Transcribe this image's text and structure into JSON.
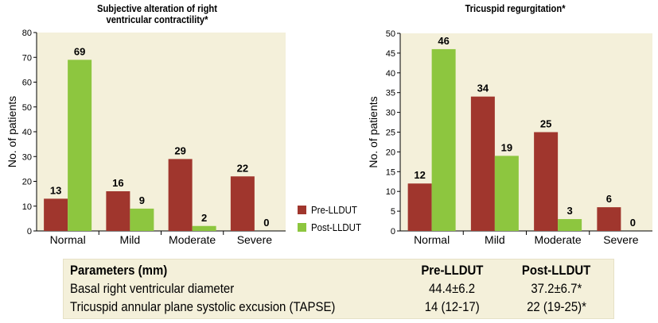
{
  "colors": {
    "pre": "#a0362d",
    "post": "#8dc63f",
    "plot_bg": "#f4f0da",
    "table_bg": "#f4f0da"
  },
  "legend": {
    "pre_label": "Pre-LLDUT",
    "post_label": "Post-LLDUT"
  },
  "chart_data": [
    {
      "type": "bar",
      "title": "Subjective alteration of right ventricular contractility*",
      "title_line1": "Subjective alteration of right",
      "title_line2": "ventricular contractility*",
      "xlabel": "",
      "ylabel": "No. of patients",
      "categories": [
        "Normal",
        "Mild",
        "Moderate",
        "Severe"
      ],
      "ylim": [
        0,
        80
      ],
      "yticks": [
        0,
        10,
        20,
        30,
        40,
        50,
        60,
        70,
        80
      ],
      "series": [
        {
          "name": "Pre-LLDUT",
          "values": [
            13,
            16,
            29,
            22
          ]
        },
        {
          "name": "Post-LLDUT",
          "values": [
            69,
            9,
            2,
            0
          ]
        }
      ]
    },
    {
      "type": "bar",
      "title": "Tricuspid regurgitation*",
      "xlabel": "",
      "ylabel": "No. of patients",
      "categories": [
        "Normal",
        "Mild",
        "Moderate",
        "Severe"
      ],
      "ylim": [
        0,
        50
      ],
      "yticks": [
        0,
        5,
        10,
        15,
        20,
        25,
        30,
        35,
        40,
        45,
        50
      ],
      "series": [
        {
          "name": "Pre-LLDUT",
          "values": [
            12,
            34,
            25,
            6
          ]
        },
        {
          "name": "Post-LLDUT",
          "values": [
            46,
            19,
            3,
            0
          ]
        }
      ]
    }
  ],
  "table": {
    "headers": [
      "Parameters (mm)",
      "Pre-LLDUT",
      "Post-LLDUT"
    ],
    "rows": [
      [
        "Basal right ventricular diameter",
        "44.4±6.2",
        "37.2±6.7*"
      ],
      [
        "Tricuspid annular plane systolic excusion (TAPSE)",
        "14 (12-17)",
        "22 (19-25)*"
      ]
    ]
  }
}
